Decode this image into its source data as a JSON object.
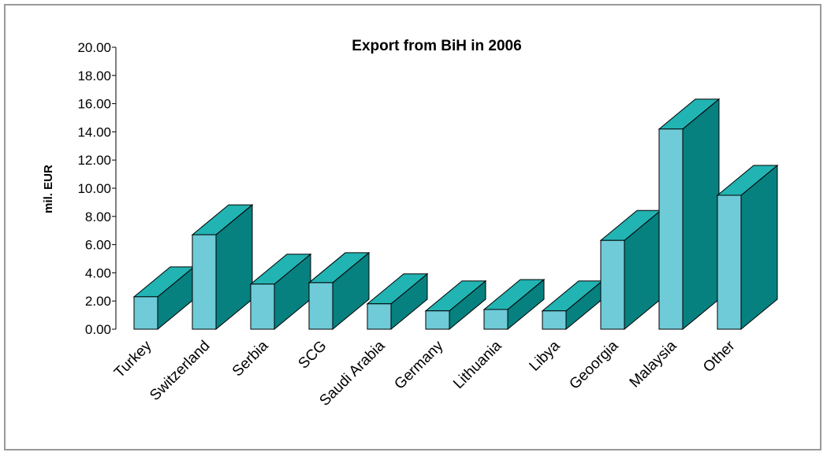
{
  "chart_data": {
    "type": "bar",
    "style": "3d",
    "title": "Export from BiH in 2006",
    "xlabel": "",
    "ylabel": "mil. EUR",
    "ylim": [
      0,
      20
    ],
    "ytick_step": 2,
    "ytick_labels": [
      "0.00",
      "2.00",
      "4.00",
      "6.00",
      "8.00",
      "10.00",
      "12.00",
      "14.00",
      "16.00",
      "18.00",
      "20.00"
    ],
    "categories": [
      "Turkey",
      "Switzerland",
      "Serbia",
      "SCG",
      "Saudi Arabia",
      "Germany",
      "Lithuania",
      "Libya",
      "Geoorgia",
      "Malaysia",
      "Other"
    ],
    "values": [
      2.3,
      6.7,
      3.2,
      3.3,
      1.8,
      1.3,
      1.4,
      1.3,
      6.3,
      14.2,
      9.5
    ],
    "grid": false,
    "legend": "none",
    "colors": {
      "front": "#6fcbd8",
      "top": "#22b3b3",
      "side": "#078080",
      "outline": "#000000",
      "frame": "#9a9a9a"
    }
  }
}
